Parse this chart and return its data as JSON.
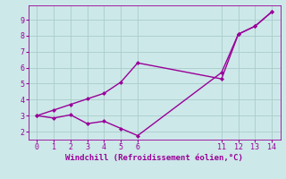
{
  "line1_x": [
    0,
    1,
    2,
    3,
    4,
    5,
    6,
    11,
    12,
    13,
    14
  ],
  "line1_y": [
    3.0,
    3.35,
    3.7,
    4.05,
    4.4,
    5.1,
    6.3,
    5.3,
    8.1,
    8.6,
    9.5
  ],
  "line2_x": [
    0,
    1,
    2,
    3,
    4,
    5,
    6,
    11,
    12,
    13,
    14
  ],
  "line2_y": [
    3.0,
    2.85,
    3.05,
    2.5,
    2.65,
    2.2,
    1.75,
    5.7,
    8.1,
    8.6,
    9.5
  ],
  "line_color": "#990099",
  "marker": "D",
  "marker_size": 2,
  "bg_color": "#cce8e8",
  "grid_color": "#aacccc",
  "xlabel": "Windchill (Refroidissement éolien,°C)",
  "xlabel_color": "#990099",
  "tick_color": "#990099",
  "xlim": [
    -0.5,
    14.5
  ],
  "ylim": [
    1.5,
    9.9
  ],
  "xticks": [
    0,
    1,
    2,
    3,
    4,
    5,
    6,
    11,
    12,
    13,
    14
  ],
  "yticks": [
    2,
    3,
    4,
    5,
    6,
    7,
    8,
    9
  ],
  "line_width": 1.0
}
